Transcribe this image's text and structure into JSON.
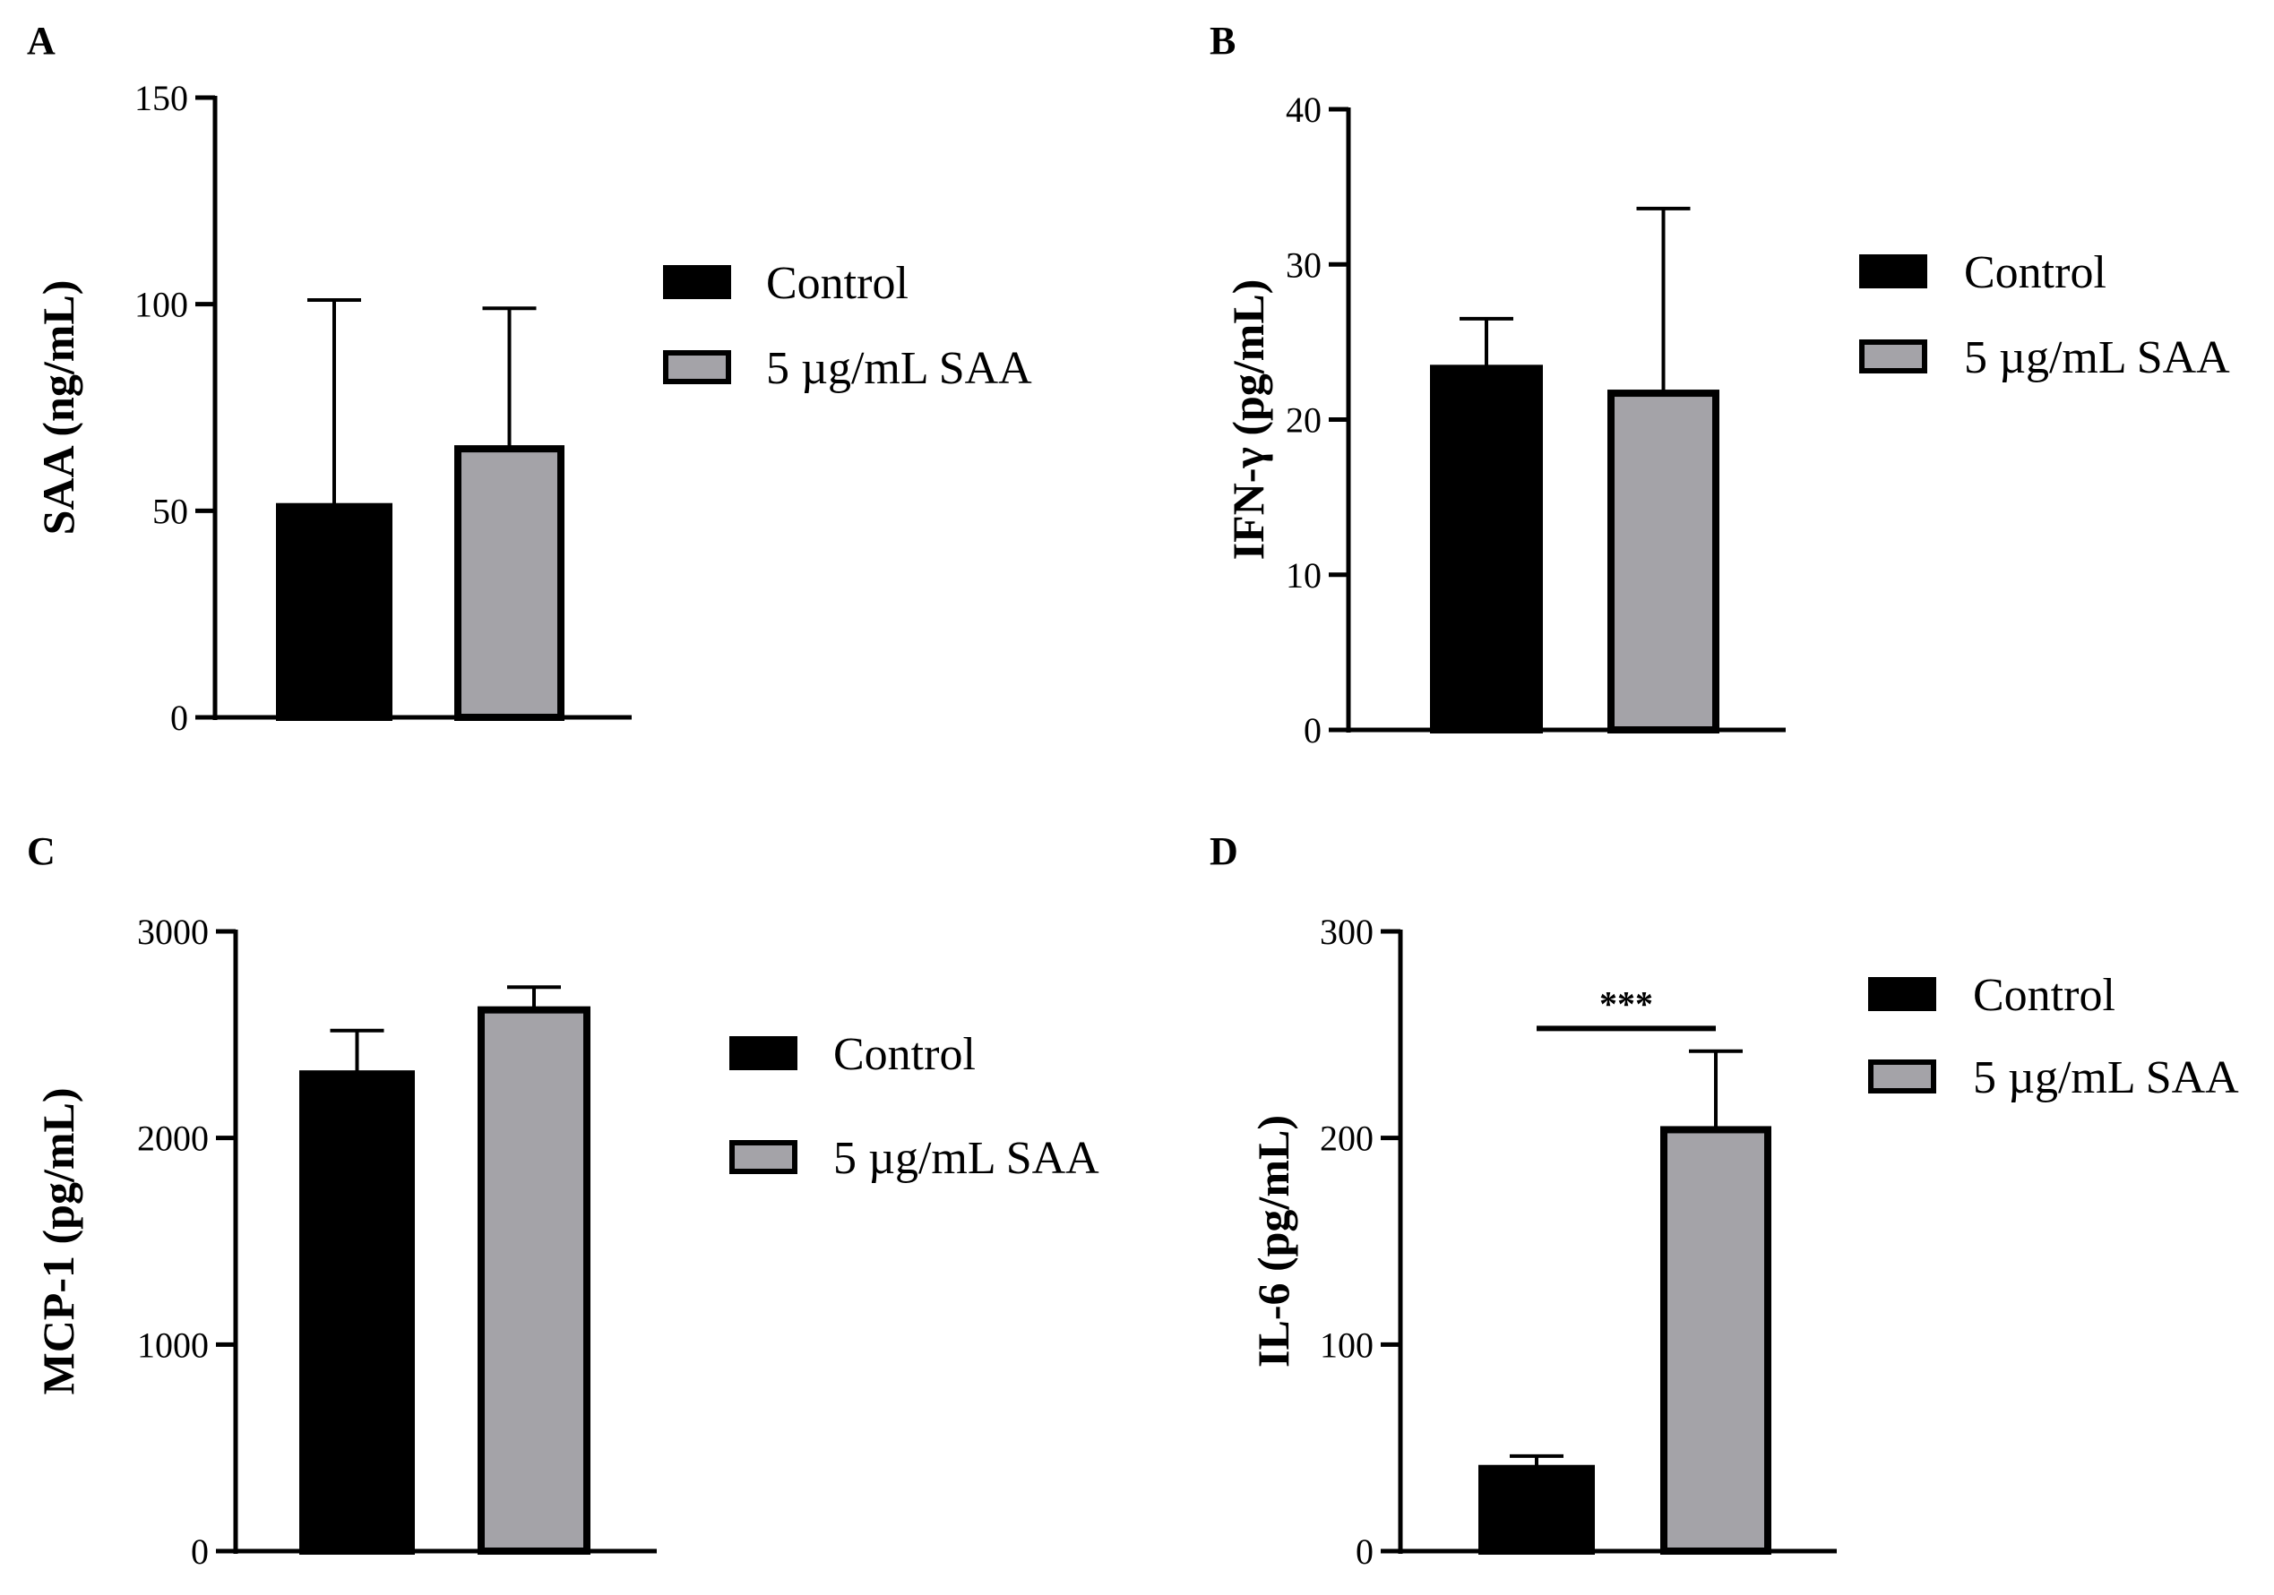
{
  "colors": {
    "control": "#000000",
    "treated": "#a4a3a8",
    "axis": "#000000"
  },
  "chart_data": [
    {
      "type": "bar",
      "panel": "A",
      "ylabel": "SAA (ng/mL)",
      "ylim": [
        0,
        150
      ],
      "yticks": [
        0,
        50,
        100,
        150
      ],
      "categories": [
        "Control",
        "5 µg/mL SAA"
      ],
      "values": [
        51,
        65
      ],
      "errors": [
        50,
        34
      ],
      "legend": [
        "Control",
        "5 µg/mL SAA"
      ],
      "significance": null
    },
    {
      "type": "bar",
      "panel": "B",
      "ylabel": "IFN-γ (pg/mL)",
      "ylim": [
        0,
        40
      ],
      "yticks": [
        0,
        10,
        20,
        30,
        40
      ],
      "categories": [
        "Control",
        "5 µg/mL SAA"
      ],
      "values": [
        23.3,
        21.7
      ],
      "errors": [
        3.2,
        11.9
      ],
      "legend": [
        "Control",
        "5 µg/mL SAA"
      ],
      "significance": null
    },
    {
      "type": "bar",
      "panel": "C",
      "ylabel": "MCP-1 (pg/mL)",
      "ylim": [
        0,
        3000
      ],
      "yticks": [
        0,
        1000,
        2000,
        3000
      ],
      "categories": [
        "Control",
        "5 µg/mL SAA"
      ],
      "values": [
        2310,
        2620
      ],
      "errors": [
        210,
        110
      ],
      "legend": [
        "Control",
        "5 µg/mL SAA"
      ],
      "significance": null
    },
    {
      "type": "bar",
      "panel": "D",
      "ylabel": "IL-6 (pg/mL)",
      "ylim": [
        0,
        300
      ],
      "yticks": [
        0,
        100,
        200,
        300
      ],
      "categories": [
        "Control",
        "5 µg/mL SAA"
      ],
      "values": [
        40,
        204
      ],
      "errors": [
        6,
        38
      ],
      "legend": [
        "Control",
        "5 µg/mL SAA"
      ],
      "significance": {
        "label": "***",
        "value": 253
      }
    }
  ]
}
